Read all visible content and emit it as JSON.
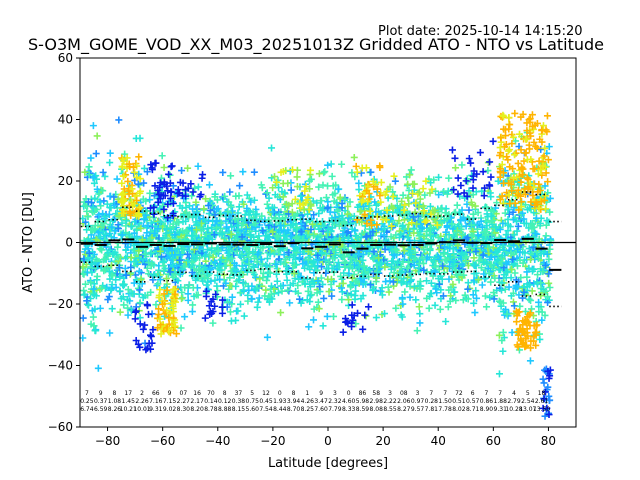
{
  "header": {
    "plot_date": "Plot date: 2025-10-14 14:15:20",
    "title": "S-O3M_GOME_VOD_XX_M03_20251013Z Gridded ATO - NTO vs Latitude"
  },
  "chart_data": {
    "type": "scatter",
    "xlabel": "Latitude [degrees]",
    "ylabel": "ATO - NTO [DU]",
    "xlim": [
      -90,
      90
    ],
    "ylim": [
      -60,
      60
    ],
    "xticks": [
      -80,
      -60,
      -40,
      -20,
      0,
      20,
      40,
      60,
      80
    ],
    "yticks": [
      -60,
      -40,
      -20,
      0,
      20,
      40,
      60
    ],
    "zero_line": 0,
    "bins_lat": [
      -87.5,
      -82.5,
      -77.5,
      -72.5,
      -67.5,
      -62.5,
      -57.5,
      -52.5,
      -47.5,
      -42.5,
      -37.5,
      -32.5,
      -27.5,
      -22.5,
      -17.5,
      -12.5,
      -7.5,
      -2.5,
      2.5,
      7.5,
      12.5,
      17.5,
      22.5,
      27.5,
      32.5,
      37.5,
      42.5,
      47.5,
      52.5,
      57.5,
      62.5,
      67.5,
      72.5,
      77.5,
      82.5
    ],
    "bin_mean": [
      -0.4,
      -0.8,
      0.7,
      1.0,
      -1.4,
      -0.8,
      -1.1,
      -0.5,
      -0.6,
      -0.3,
      -0.6,
      -0.7,
      -0.8,
      -0.5,
      -1.2,
      -0.2,
      -1.9,
      -1.4,
      -0.6,
      -3.2,
      -2.0,
      -0.8,
      -0.7,
      -0.9,
      -0.8,
      -0.3,
      0.1,
      0.7,
      -0.1,
      -0.2,
      0.8,
      0.4,
      1.2,
      -2.0,
      -8.9
    ],
    "bin_plus_std": [
      5.2,
      6.8,
      7.4,
      11.5,
      10.2,
      9.5,
      8.7,
      8.4,
      9.1,
      8.2,
      8.8,
      8.6,
      7.2,
      6.9,
      7.0,
      7.4,
      7.6,
      6.8,
      7.1,
      5.5,
      8.0,
      8.3,
      8.6,
      8.9,
      9.4,
      8.4,
      8.6,
      9.2,
      7.6,
      11.1,
      12.1,
      13.9,
      16.4,
      15.6,
      6.8
    ],
    "bin_minus_std": [
      -6.4,
      -7.8,
      -7.4,
      -9.4,
      -12.8,
      -11.3,
      -12.4,
      -9.7,
      -10.9,
      -9.6,
      -10.3,
      -10.5,
      -9.1,
      -8.6,
      -9.5,
      -9.5,
      -11.5,
      -9.8,
      -9.6,
      -11.4,
      -11.0,
      -10.4,
      -10.9,
      -10.6,
      -10.4,
      -10.1,
      -10.2,
      -9.6,
      -9.4,
      -11.2,
      -13.9,
      -12.8,
      -17.4,
      -16.9,
      -20.8
    ],
    "bin_stats_text": [
      [
        "7",
        "0.25",
        "6.74"
      ],
      [
        "9",
        "0.37",
        "6.59"
      ],
      [
        "8",
        "1.08",
        "8.26"
      ],
      [
        "17",
        "1.45",
        "10.21"
      ],
      [
        "2",
        "2.26",
        "10.01"
      ],
      [
        "66",
        "7.16",
        "9.31"
      ],
      [
        "9",
        "7.15",
        "9.02"
      ],
      [
        "07",
        "2.27",
        "8.30"
      ],
      [
        "16",
        "2.17",
        "8.20"
      ],
      [
        "70",
        "0.14",
        "8.78"
      ],
      [
        "8",
        "0.12",
        "8.88"
      ],
      [
        "37",
        "0.38",
        "8.15"
      ],
      [
        "5",
        "0.75",
        "5.60"
      ],
      [
        "12",
        "0.45",
        "7.54"
      ],
      [
        "0",
        "1.93",
        "8.44"
      ],
      [
        "8",
        "3.94",
        "8.70"
      ],
      [
        "1",
        "4.26",
        "8.25"
      ],
      [
        "9",
        "3.47",
        "7.60"
      ],
      [
        "3",
        "2.32",
        "7.79"
      ],
      [
        "0",
        "4.60",
        "8.33"
      ],
      [
        "86",
        "5.98",
        "8.59"
      ],
      [
        "58",
        "2.98",
        "8.08"
      ],
      [
        "3",
        "2.22",
        "8.55"
      ],
      [
        "08",
        "2.06",
        "8.27"
      ],
      [
        "3",
        "0.97",
        "9.57"
      ],
      [
        "7",
        "0.28",
        "7.81"
      ],
      [
        "7",
        "1.50",
        "7.78"
      ],
      [
        "72",
        "0.51",
        "8.02"
      ],
      [
        "6",
        "0.57",
        "8.71"
      ],
      [
        "7",
        "0.86",
        "8.90"
      ],
      [
        "7",
        "1.88",
        "9.31"
      ],
      [
        "4",
        "2.79",
        "10.28"
      ],
      [
        "5",
        "2.54",
        "13.07"
      ],
      [
        "18",
        "2.61",
        "13.50"
      ],
      [
        "",
        "",
        ""
      ]
    ],
    "colors": {
      "dark_blue": "#0a1ee6",
      "blue": "#1e8cff",
      "cyan": "#1ec8ff",
      "aqua": "#26e6d8",
      "mint": "#44f2b4",
      "green_yellow": "#8cf05a",
      "yellow": "#e6f01e",
      "orange": "#ffb400",
      "mean_marker": "#000000"
    }
  }
}
